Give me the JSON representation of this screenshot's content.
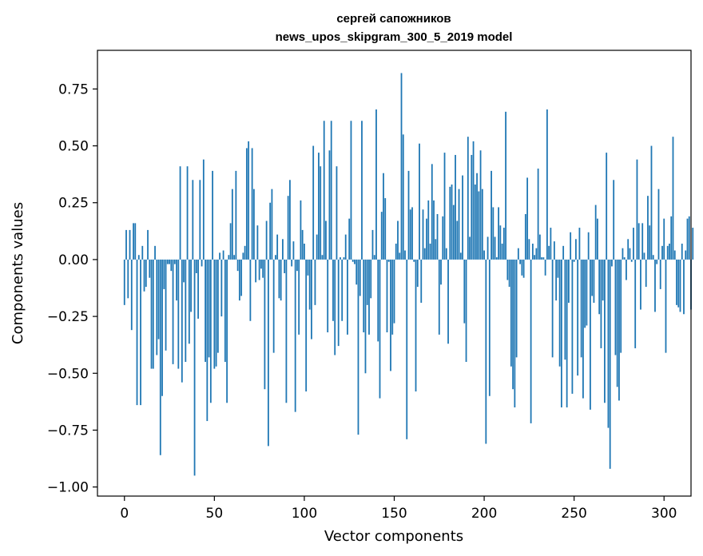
{
  "chart_data": {
    "type": "bar",
    "title": [
      "сергей сапожников",
      "news_upos_skipgram_300_5_2019 model"
    ],
    "xlabel": "Vector components",
    "ylabel": "Components values",
    "xlim": [
      -15,
      315
    ],
    "ylim": [
      -1.04,
      0.92
    ],
    "xticks": [
      0,
      50,
      100,
      150,
      200,
      250,
      300
    ],
    "xtick_labels": [
      "0",
      "50",
      "100",
      "150",
      "200",
      "250",
      "300"
    ],
    "yticks": [
      0.75,
      0.5,
      0.25,
      0.0,
      -0.25,
      -0.5,
      -0.75,
      -1.0
    ],
    "ytick_labels": [
      "0.75",
      "0.50",
      "0.25",
      "0.00",
      "−0.25",
      "−0.50",
      "−0.75",
      "−1.00"
    ],
    "bar_color": "#1f77b4",
    "grid": false,
    "series": [
      {
        "name": "components",
        "values": [
          -0.2,
          0.13,
          -0.17,
          0.13,
          -0.31,
          0.16,
          0.16,
          -0.64,
          0.02,
          -0.64,
          0.06,
          -0.14,
          -0.12,
          0.13,
          -0.08,
          -0.48,
          -0.48,
          0.06,
          -0.42,
          -0.35,
          -0.86,
          -0.6,
          -0.13,
          -0.4,
          -0.02,
          -0.02,
          -0.05,
          -0.46,
          -0.02,
          -0.18,
          -0.48,
          0.41,
          -0.54,
          -0.1,
          -0.45,
          0.41,
          -0.37,
          -0.23,
          0.35,
          -0.95,
          -0.06,
          -0.26,
          0.35,
          -0.03,
          0.44,
          -0.45,
          -0.71,
          -0.43,
          -0.63,
          0.39,
          -0.48,
          -0.47,
          -0.41,
          0.03,
          -0.25,
          0.04,
          -0.45,
          -0.63,
          0.02,
          0.16,
          0.31,
          0.02,
          0.39,
          -0.05,
          -0.18,
          -0.16,
          0.03,
          0.06,
          0.49,
          0.52,
          -0.27,
          0.49,
          0.31,
          -0.1,
          0.15,
          -0.09,
          -0.04,
          -0.08,
          -0.57,
          0.17,
          -0.82,
          0.25,
          0.31,
          -0.41,
          0.02,
          0.11,
          -0.17,
          -0.18,
          0.09,
          -0.06,
          -0.63,
          0.28,
          0.35,
          -0.03,
          0.08,
          -0.67,
          -0.05,
          -0.33,
          0.26,
          0.13,
          0.07,
          -0.58,
          -0.07,
          -0.22,
          -0.35,
          0.5,
          -0.2,
          0.11,
          0.47,
          0.41,
          0.02,
          0.61,
          0.17,
          -0.32,
          0.48,
          0.61,
          -0.27,
          -0.42,
          0.41,
          -0.38,
          0.01,
          -0.27,
          0.01,
          0.11,
          -0.33,
          0.18,
          0.61,
          -0.01,
          -0.02,
          -0.11,
          -0.77,
          -0.16,
          0.61,
          -0.32,
          -0.5,
          -0.2,
          -0.33,
          -0.17,
          0.13,
          0.02,
          0.66,
          -0.36,
          -0.61,
          0.21,
          0.38,
          0.27,
          -0.32,
          -0.01,
          -0.49,
          -0.33,
          -0.28,
          0.07,
          0.17,
          0.03,
          0.82,
          0.55,
          0.04,
          -0.79,
          0.39,
          0.22,
          0.23,
          -0.01,
          -0.58,
          -0.12,
          0.51,
          -0.19,
          0.22,
          0.05,
          0.18,
          0.26,
          0.07,
          0.42,
          0.26,
          0.09,
          0.2,
          -0.33,
          -0.11,
          0.19,
          0.47,
          0.05,
          -0.37,
          0.32,
          0.33,
          0.24,
          0.46,
          0.17,
          0.31,
          0.03,
          0.37,
          -0.28,
          -0.45,
          0.54,
          0.1,
          0.46,
          0.52,
          0.33,
          0.38,
          0.3,
          0.48,
          0.31,
          0.04,
          -0.81,
          0.1,
          -0.6,
          0.39,
          0.23,
          0.1,
          0.01,
          0.23,
          0.15,
          0.07,
          0.14,
          0.65,
          -0.09,
          -0.12,
          -0.47,
          -0.57,
          -0.65,
          -0.43,
          0.05,
          -0.02,
          -0.07,
          -0.08,
          0.2,
          0.36,
          0.09,
          -0.72,
          0.07,
          0.02,
          0.05,
          0.4,
          0.11,
          0.01,
          0.01,
          -0.07,
          0.66,
          0.06,
          0.14,
          -0.43,
          0.08,
          -0.18,
          -0.08,
          -0.47,
          -0.65,
          0.06,
          -0.44,
          -0.65,
          -0.19,
          0.12,
          -0.59,
          -0.01,
          0.09,
          -0.51,
          0.14,
          -0.43,
          -0.61,
          -0.3,
          -0.29,
          0.12,
          -0.66,
          -0.16,
          -0.19,
          0.24,
          0.18,
          -0.24,
          -0.39,
          -0.18,
          -0.63,
          0.47,
          -0.74,
          -0.92,
          -0.03,
          0.35,
          -0.42,
          -0.56,
          -0.62,
          -0.41,
          0.05,
          0.01,
          -0.09,
          0.09,
          0.05,
          -0.01,
          0.14,
          -0.39,
          0.44,
          0.16,
          -0.22,
          0.16,
          0.03,
          -0.12,
          0.28,
          0.15,
          0.5,
          0.02,
          -0.23,
          -0.02,
          0.31,
          -0.13,
          0.06,
          0.18,
          -0.41,
          0.06,
          0.07,
          0.19,
          0.54,
          0.04,
          -0.2,
          -0.21,
          -0.23,
          0.07,
          -0.24,
          0.04,
          0.18,
          0.19,
          -0.22,
          0.14
        ]
      }
    ]
  }
}
